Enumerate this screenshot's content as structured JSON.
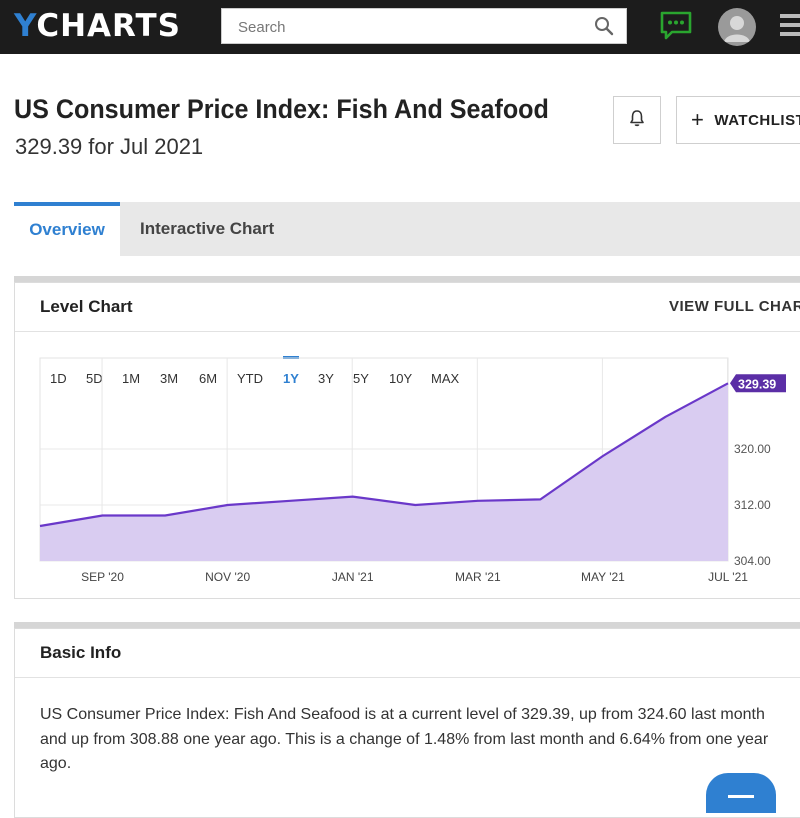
{
  "header": {
    "logo_y": "Y",
    "logo_rest": "CHARTS",
    "search_placeholder": "Search",
    "icons": [
      "search-icon",
      "chat-icon",
      "avatar-icon",
      "menu-icon"
    ]
  },
  "page": {
    "title": "US Consumer Price Index: Fish And Seafood",
    "value": "329.39",
    "period_prefix": "for",
    "period": "Jul 2021",
    "watchlist_label": "WATCHLIST"
  },
  "tabs": [
    {
      "label": "Overview",
      "active": true
    },
    {
      "label": "Interactive Chart",
      "active": false
    }
  ],
  "level_chart": {
    "heading": "Level Chart",
    "full_chart_label": "VIEW FULL CHART",
    "ranges": [
      "1D",
      "5D",
      "1M",
      "3M",
      "6M",
      "YTD",
      "1Y",
      "3Y",
      "5Y",
      "10Y",
      "MAX"
    ],
    "active_range": "1Y"
  },
  "chart_data": {
    "type": "area",
    "x_labels": [
      "SEP '20",
      "NOV '20",
      "JAN '21",
      "MAR '21",
      "MAY '21",
      "JUL '21"
    ],
    "x": [
      "2020-08",
      "2020-09",
      "2020-10",
      "2020-11",
      "2020-12",
      "2021-01",
      "2021-02",
      "2021-03",
      "2021-04",
      "2021-05",
      "2021-06",
      "2021-07"
    ],
    "y_ticks": [
      "304.00",
      "312.00",
      "320.00"
    ],
    "ylim": [
      304,
      333
    ],
    "series": [
      {
        "values": [
          309.0,
          310.5,
          310.5,
          312.0,
          312.6,
          313.2,
          312.0,
          312.6,
          312.8,
          319.0,
          324.6,
          329.39
        ]
      }
    ],
    "last_value_label": "329.39",
    "colors": {
      "line": "#6a38c9",
      "fill": "#d9ccf1",
      "badge": "#5b2ea6"
    },
    "grid": true
  },
  "basic_info": {
    "heading": "Basic Info",
    "text": "US Consumer Price Index: Fish And Seafood is at a current level of 329.39, up from 324.60 last month and up from 308.88 one year ago. This is a change of 1.48% from last month and 6.64% from one year ago."
  }
}
